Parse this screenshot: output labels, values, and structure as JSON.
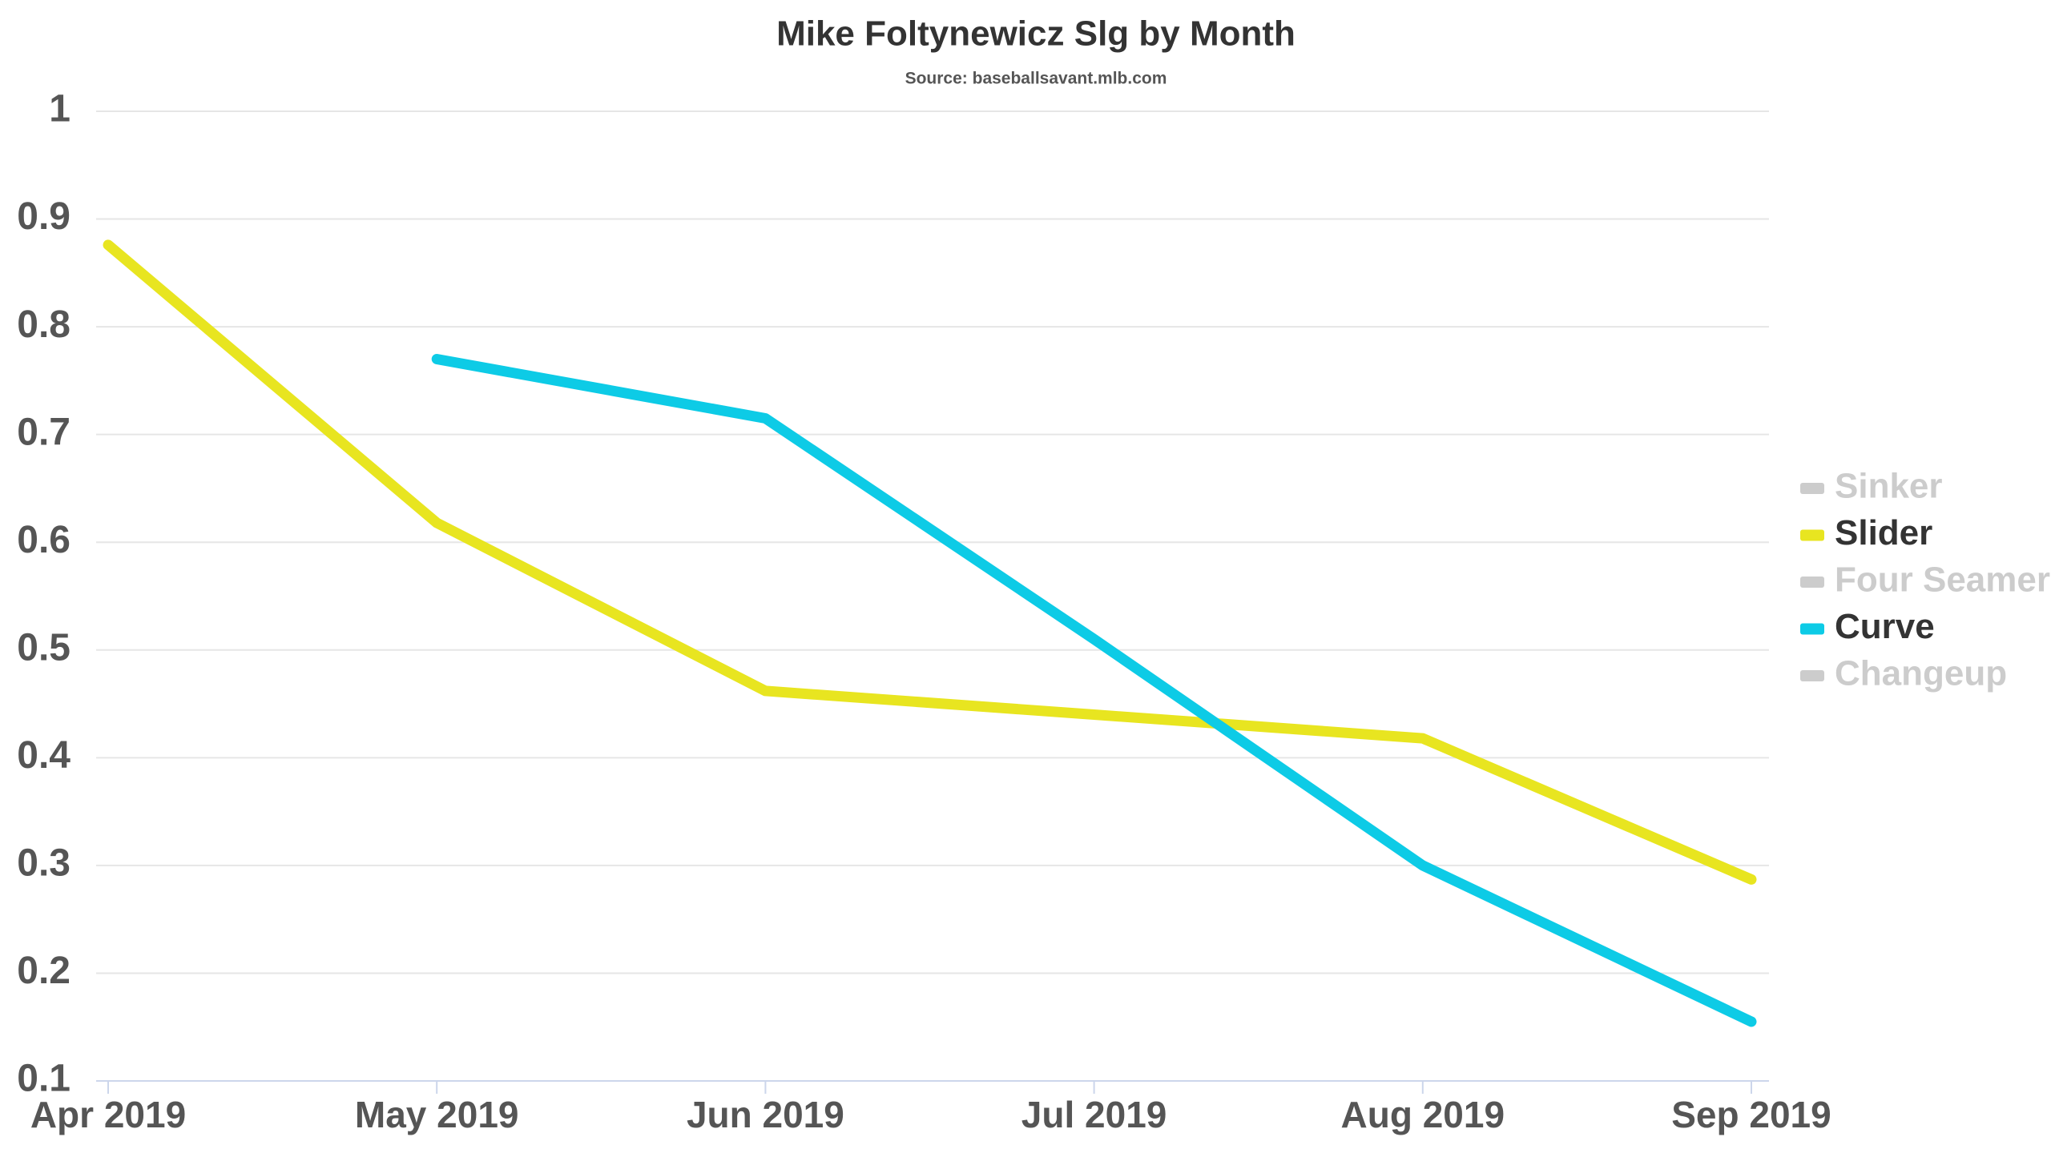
{
  "chart_data": {
    "type": "line",
    "title": "Mike Foltynewicz Slg by Month",
    "subtitle": "Source: baseballsavant.mlb.com",
    "categories": [
      "Apr 2019",
      "May 2019",
      "Jun 2019",
      "Jul 2019",
      "Aug 2019",
      "Sep 2019"
    ],
    "series": [
      {
        "name": "Sinker",
        "color": "#cccccc",
        "visible": false,
        "values": [
          null,
          null,
          null,
          null,
          null,
          null
        ]
      },
      {
        "name": "Slider",
        "color": "#e8e520",
        "visible": true,
        "values": [
          0.876,
          0.618,
          0.462,
          0.44,
          0.418,
          0.287
        ]
      },
      {
        "name": "Four Seamer",
        "color": "#cccccc",
        "visible": false,
        "values": [
          null,
          null,
          null,
          null,
          null,
          null
        ]
      },
      {
        "name": "Curve",
        "color": "#0dcbe6",
        "visible": true,
        "values": [
          null,
          0.77,
          0.715,
          0.51,
          0.3,
          0.155
        ]
      },
      {
        "name": "Changeup",
        "color": "#cccccc",
        "visible": false,
        "values": [
          null,
          null,
          null,
          null,
          null,
          null
        ]
      }
    ],
    "ylim": [
      0.1,
      1
    ],
    "yticks": [
      0.1,
      0.2,
      0.3,
      0.4,
      0.5,
      0.6,
      0.7,
      0.8,
      0.9,
      1
    ],
    "grid": true,
    "legend": "right"
  }
}
